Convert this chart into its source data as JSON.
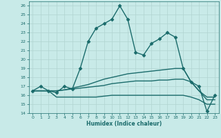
{
  "xlabel": "Humidex (Indice chaleur)",
  "xlim": [
    -0.5,
    23.5
  ],
  "ylim": [
    14,
    26.5
  ],
  "yticks": [
    14,
    15,
    16,
    17,
    18,
    19,
    20,
    21,
    22,
    23,
    24,
    25,
    26
  ],
  "xticks": [
    0,
    1,
    2,
    3,
    4,
    5,
    6,
    7,
    8,
    9,
    10,
    11,
    12,
    13,
    14,
    15,
    16,
    17,
    18,
    19,
    20,
    21,
    22,
    23
  ],
  "bg_color": "#c8eae8",
  "grid_color": "#b0d4d0",
  "line_color": "#1a6b6b",
  "lines": [
    {
      "x": [
        0,
        1,
        2,
        3,
        4,
        5,
        6,
        7,
        8,
        9,
        10,
        11,
        12,
        13,
        14,
        15,
        16,
        17,
        18,
        19,
        20,
        21,
        22,
        23
      ],
      "y": [
        16.5,
        17.0,
        16.5,
        16.3,
        17.0,
        16.7,
        19.0,
        22.0,
        23.5,
        24.0,
        24.5,
        26.0,
        24.5,
        20.8,
        20.5,
        21.8,
        22.3,
        23.0,
        22.5,
        19.0,
        17.5,
        17.0,
        14.2,
        16.0
      ],
      "marker": "D",
      "markersize": 2.5,
      "linewidth": 1.0
    },
    {
      "x": [
        0,
        1,
        2,
        3,
        4,
        5,
        6,
        7,
        8,
        9,
        10,
        11,
        12,
        13,
        14,
        15,
        16,
        17,
        18,
        19,
        20,
        21,
        22,
        23
      ],
      "y": [
        16.5,
        16.5,
        16.5,
        16.5,
        16.6,
        16.8,
        17.0,
        17.2,
        17.5,
        17.8,
        18.0,
        18.2,
        18.4,
        18.5,
        18.6,
        18.7,
        18.8,
        18.9,
        19.0,
        19.0,
        17.5,
        16.5,
        15.8,
        15.8
      ],
      "marker": null,
      "markersize": 0,
      "linewidth": 1.0
    },
    {
      "x": [
        0,
        1,
        2,
        3,
        4,
        5,
        6,
        7,
        8,
        9,
        10,
        11,
        12,
        13,
        14,
        15,
        16,
        17,
        18,
        19,
        20,
        21,
        22,
        23
      ],
      "y": [
        16.5,
        16.5,
        16.5,
        16.5,
        16.6,
        16.7,
        16.8,
        16.9,
        17.0,
        17.1,
        17.3,
        17.4,
        17.5,
        17.6,
        17.6,
        17.6,
        17.7,
        17.7,
        17.8,
        17.8,
        17.5,
        16.5,
        15.5,
        15.5
      ],
      "marker": null,
      "markersize": 0,
      "linewidth": 1.0
    },
    {
      "x": [
        0,
        1,
        2,
        3,
        4,
        5,
        6,
        7,
        8,
        9,
        10,
        11,
        12,
        13,
        14,
        15,
        16,
        17,
        18,
        19,
        20,
        21,
        22,
        23
      ],
      "y": [
        16.5,
        16.5,
        16.5,
        15.8,
        15.8,
        15.8,
        15.8,
        15.8,
        15.8,
        15.9,
        16.0,
        16.0,
        16.0,
        16.0,
        16.0,
        16.0,
        16.0,
        16.0,
        16.0,
        16.0,
        15.8,
        15.5,
        15.0,
        15.0
      ],
      "marker": null,
      "markersize": 0,
      "linewidth": 1.0
    }
  ]
}
